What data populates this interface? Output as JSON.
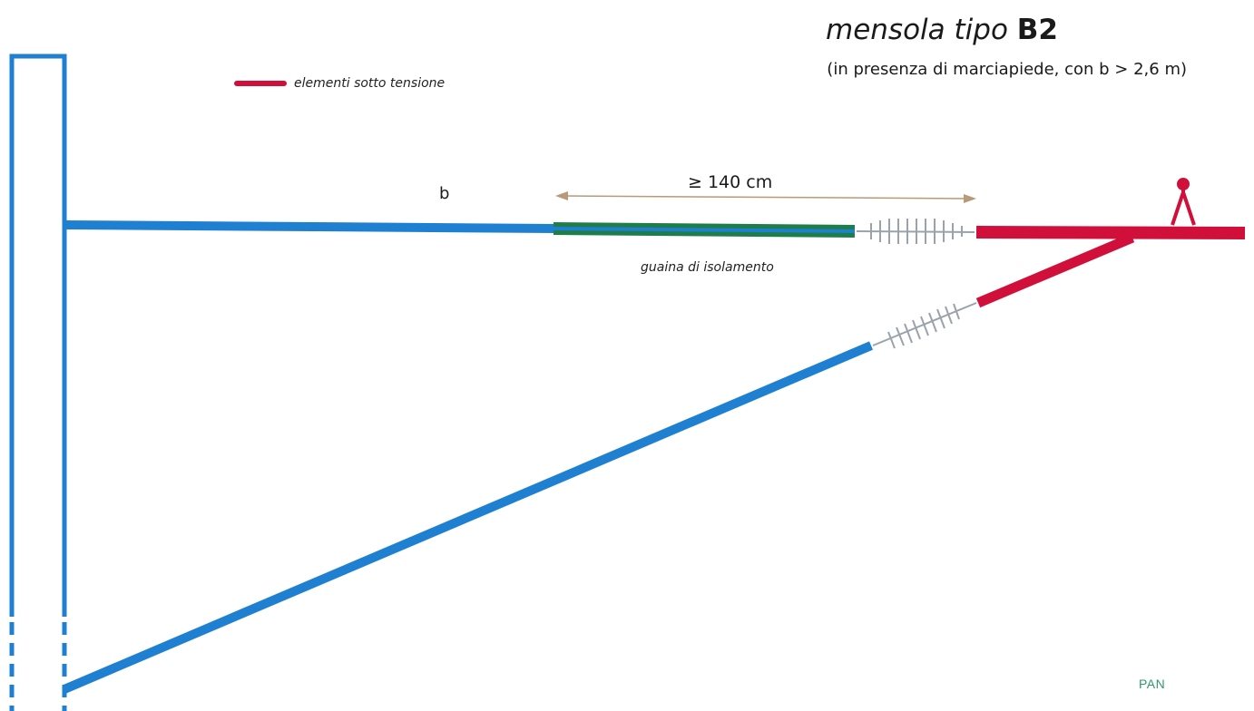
{
  "title": {
    "prefix": "mensola tipo",
    "code": "B2"
  },
  "subtitle": "(in presenza di marciapiede, con b > 2,6 m)",
  "legend": {
    "label": "elementi sotto tensione",
    "color": "#d0103a"
  },
  "dimension": {
    "label": "≥ 140 cm"
  },
  "bracket_label": "b",
  "sheath_label": "guaina di isolamento",
  "corner_mark": "PAN",
  "colors": {
    "structure": "#1f7fd1",
    "live": "#d0103a",
    "sheath": "#1e7e4a",
    "insulator": "#9aa3ab",
    "dimension_line": "#b89a78"
  }
}
